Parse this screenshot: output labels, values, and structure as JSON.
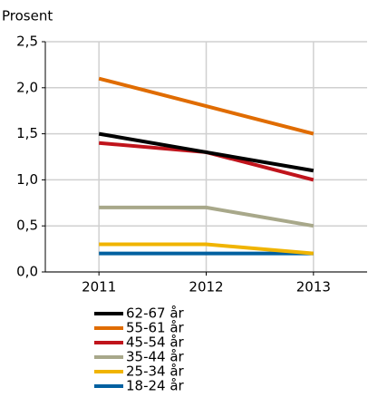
{
  "chart_data": {
    "type": "line",
    "y_axis_label": "Prosent",
    "categories": [
      "2011",
      "2012",
      "2013"
    ],
    "series": [
      {
        "name": "62-67 år",
        "color": "#000000",
        "values": [
          1.5,
          1.3,
          1.1
        ]
      },
      {
        "name": "55-61 år",
        "color": "#e06c00",
        "values": [
          2.1,
          1.8,
          1.5
        ]
      },
      {
        "name": "45-54 år",
        "color": "#c0141c",
        "values": [
          1.4,
          1.3,
          1.0
        ]
      },
      {
        "name": "35-44 år",
        "color": "#a8a88a",
        "values": [
          0.7,
          0.7,
          0.5
        ]
      },
      {
        "name": "25-34 år",
        "color": "#f0b400",
        "values": [
          0.3,
          0.3,
          0.2
        ]
      },
      {
        "name": "18-24 år",
        "color": "#0060a0",
        "values": [
          0.2,
          0.2,
          0.2
        ]
      }
    ],
    "ylim": [
      0,
      2.5
    ],
    "yticks": [
      {
        "value": 0,
        "label": "0,0"
      },
      {
        "value": 0.5,
        "label": "0,5"
      },
      {
        "value": 1,
        "label": "1,0"
      },
      {
        "value": 1.5,
        "label": "1,5"
      },
      {
        "value": 2,
        "label": "2,0"
      },
      {
        "value": 2.5,
        "label": "2,5"
      }
    ],
    "grid": true
  }
}
